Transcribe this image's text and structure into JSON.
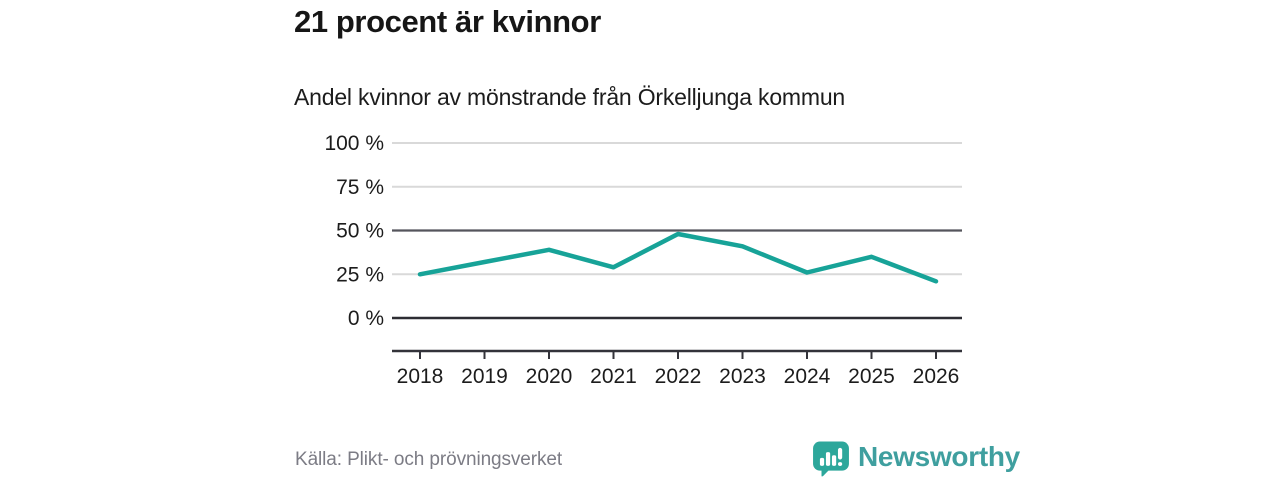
{
  "page": {
    "title": "21 procent är kvinnor",
    "subtitle": "Andel kvinnor av mönstrande från Örkelljunga kommun"
  },
  "footer": {
    "source": "Källa: Plikt- och prövningsverket",
    "brand_name": "Newsworthy",
    "logo_icon": "speech-bubble-bar-chart-icon"
  },
  "colors": {
    "line": "#17a398",
    "grid_light": "#d9d9d9",
    "grid_fifty": "#55555c",
    "grid_zero": "#2d2d33",
    "axis": "#33333a",
    "tick_text": "#1c1c1c",
    "title_text": "#161616",
    "muted_text": "#7c7c85",
    "brand_icon": "#2da79b",
    "brand_text": "#3f9f9f"
  },
  "chart_data": {
    "type": "line",
    "title": "21 procent är kvinnor",
    "subtitle": "Andel kvinnor av mönstrande från Örkelljunga kommun",
    "x": [
      2018,
      2019,
      2020,
      2021,
      2022,
      2023,
      2024,
      2025,
      2026
    ],
    "series": [
      {
        "name": "Andel kvinnor av mönstrande",
        "values": [
          25,
          32,
          39,
          29,
          48,
          41,
          26,
          35,
          21
        ]
      }
    ],
    "unit": "%",
    "xlabel": "",
    "ylabel": "",
    "ylim": [
      0,
      100
    ],
    "yticks": [
      100,
      75,
      50,
      25,
      0
    ],
    "ytick_labels": [
      "100 %",
      "75 %",
      "50 %",
      "25 %",
      "0 %"
    ],
    "grid": true,
    "legend": false,
    "emphasized_gridlines": [
      50,
      0
    ],
    "line_color": "#17a398",
    "source": "Källa: Plikt- och prövningsverket"
  }
}
